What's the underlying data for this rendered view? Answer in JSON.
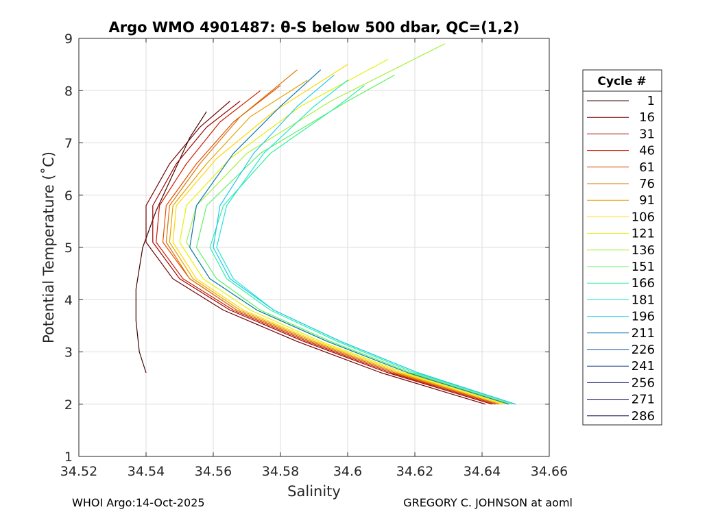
{
  "chart_data": {
    "type": "line",
    "title": "Argo WMO 4901487: θ-S below 500 dbar,  QC=(1,2)",
    "xlabel": "Salinity",
    "ylabel": "Potential Temperature (˚C)",
    "xlim": [
      34.52,
      34.66
    ],
    "ylim": [
      1,
      9
    ],
    "xticks": [
      34.52,
      34.54,
      34.56,
      34.58,
      34.6,
      34.62,
      34.64,
      34.66
    ],
    "xtick_labels": [
      "34.52",
      "34.54",
      "34.56",
      "34.58",
      "34.6",
      "34.62",
      "34.64",
      "34.66"
    ],
    "yticks": [
      1,
      2,
      3,
      4,
      5,
      6,
      7,
      8,
      9
    ],
    "ytick_labels": [
      "1",
      "2",
      "3",
      "4",
      "5",
      "6",
      "7",
      "8",
      "9"
    ],
    "grid": true,
    "legend": {
      "title": "Cycle #",
      "placement": "outside-right",
      "entries": [
        {
          "label": "1",
          "color": "#400000"
        },
        {
          "label": "16",
          "color": "#6e0000"
        },
        {
          "label": "31",
          "color": "#9c0000"
        },
        {
          "label": "46",
          "color": "#cc1a00"
        },
        {
          "label": "61",
          "color": "#e64a00"
        },
        {
          "label": "76",
          "color": "#d97300"
        },
        {
          "label": "91",
          "color": "#e6a000"
        },
        {
          "label": "106",
          "color": "#ffd700"
        },
        {
          "label": "121",
          "color": "#e6f000"
        },
        {
          "label": "136",
          "color": "#a6f03c"
        },
        {
          "label": "151",
          "color": "#5cf064"
        },
        {
          "label": "166",
          "color": "#2ef0a0"
        },
        {
          "label": "181",
          "color": "#1ee6d2"
        },
        {
          "label": "196",
          "color": "#1ec8f0"
        },
        {
          "label": "211",
          "color": "#0a78b4"
        },
        {
          "label": "226",
          "color": "#0a4696"
        },
        {
          "label": "241",
          "color": "#0a2d78"
        },
        {
          "label": "256",
          "color": "#000060"
        },
        {
          "label": "271",
          "color": "#000050"
        },
        {
          "label": "286",
          "color": "#000040"
        }
      ]
    },
    "series": [
      {
        "name": "1",
        "x": [
          34.54,
          34.538,
          34.537,
          34.537,
          34.539,
          34.543,
          34.548,
          34.553,
          34.558
        ],
        "y": [
          2.6,
          3.0,
          3.6,
          4.2,
          5.0,
          5.7,
          6.4,
          7.1,
          7.6
        ]
      },
      {
        "name": "16",
        "x": [
          34.641,
          34.61,
          34.585,
          34.563,
          34.548,
          34.54,
          34.54,
          34.547,
          34.556,
          34.565
        ],
        "y": [
          2.0,
          2.6,
          3.2,
          3.8,
          4.4,
          5.1,
          5.8,
          6.6,
          7.3,
          7.8
        ]
      },
      {
        "name": "31",
        "x": [
          34.643,
          34.612,
          34.587,
          34.565,
          34.55,
          34.542,
          34.542,
          34.549,
          34.558,
          34.568
        ],
        "y": [
          2.0,
          2.6,
          3.2,
          3.8,
          4.4,
          5.1,
          5.8,
          6.6,
          7.3,
          7.8
        ]
      },
      {
        "name": "46",
        "x": [
          34.644,
          34.613,
          34.588,
          34.566,
          34.551,
          34.543,
          34.544,
          34.552,
          34.562,
          34.574
        ],
        "y": [
          2.0,
          2.6,
          3.2,
          3.8,
          4.4,
          5.1,
          5.8,
          6.6,
          7.4,
          8.0
        ]
      },
      {
        "name": "61",
        "x": [
          34.645,
          34.614,
          34.589,
          34.567,
          34.553,
          34.545,
          34.546,
          34.555,
          34.566,
          34.58
        ],
        "y": [
          2.0,
          2.6,
          3.2,
          3.8,
          4.4,
          5.1,
          5.8,
          6.6,
          7.4,
          8.1
        ]
      },
      {
        "name": "76",
        "x": [
          34.645,
          34.614,
          34.589,
          34.567,
          34.553,
          34.546,
          34.547,
          34.556,
          34.568,
          34.585
        ],
        "y": [
          2.0,
          2.6,
          3.2,
          3.8,
          4.4,
          5.1,
          5.8,
          6.6,
          7.5,
          8.4
        ]
      },
      {
        "name": "91",
        "x": [
          34.646,
          34.615,
          34.59,
          34.568,
          34.554,
          34.547,
          34.548,
          34.558,
          34.571,
          34.588
        ],
        "y": [
          2.0,
          2.6,
          3.2,
          3.8,
          4.4,
          5.1,
          5.8,
          6.6,
          7.5,
          8.2
        ]
      },
      {
        "name": "106",
        "x": [
          34.646,
          34.616,
          34.591,
          34.569,
          34.555,
          34.548,
          34.549,
          34.561,
          34.578,
          34.6
        ],
        "y": [
          2.0,
          2.6,
          3.2,
          3.8,
          4.4,
          5.1,
          5.8,
          6.7,
          7.6,
          8.5
        ]
      },
      {
        "name": "121",
        "x": [
          34.647,
          34.617,
          34.592,
          34.571,
          34.557,
          34.55,
          34.552,
          34.565,
          34.586,
          34.612
        ],
        "y": [
          2.0,
          2.6,
          3.2,
          3.8,
          4.4,
          5.1,
          5.8,
          6.7,
          7.7,
          8.6
        ]
      },
      {
        "name": "136",
        "x": [
          34.648,
          34.618,
          34.594,
          34.573,
          34.559,
          34.552,
          34.555,
          34.57,
          34.595,
          34.629
        ],
        "y": [
          2.0,
          2.6,
          3.2,
          3.8,
          4.4,
          5.1,
          5.8,
          6.8,
          7.8,
          8.9
        ]
      },
      {
        "name": "151",
        "x": [
          34.649,
          34.619,
          34.595,
          34.574,
          34.561,
          34.555,
          34.558,
          34.574,
          34.6,
          34.614
        ],
        "y": [
          2.0,
          2.6,
          3.2,
          3.8,
          4.4,
          5.0,
          5.8,
          6.8,
          7.8,
          8.3
        ]
      },
      {
        "name": "166",
        "x": [
          34.65,
          34.62,
          34.597,
          34.577,
          34.564,
          34.559,
          34.563,
          34.577,
          34.597,
          34.605
        ],
        "y": [
          2.0,
          2.6,
          3.2,
          3.8,
          4.4,
          5.0,
          5.8,
          6.8,
          7.7,
          8.1
        ]
      },
      {
        "name": "181",
        "x": [
          34.65,
          34.621,
          34.598,
          34.578,
          34.566,
          34.561,
          34.564,
          34.575,
          34.59,
          34.6
        ],
        "y": [
          2.0,
          2.6,
          3.2,
          3.8,
          4.4,
          5.0,
          5.8,
          6.8,
          7.7,
          8.2
        ]
      },
      {
        "name": "196",
        "x": [
          34.65,
          34.621,
          34.598,
          34.578,
          34.565,
          34.56,
          34.562,
          34.572,
          34.585,
          34.596
        ],
        "y": [
          2.0,
          2.6,
          3.2,
          3.8,
          4.4,
          5.0,
          5.8,
          6.8,
          7.7,
          8.3
        ]
      },
      {
        "name": "211",
        "x": [
          34.648,
          34.618,
          34.594,
          34.573,
          34.559,
          34.553,
          34.555,
          34.566,
          34.58,
          34.592
        ],
        "y": [
          2.0,
          2.6,
          3.2,
          3.8,
          4.4,
          5.0,
          5.8,
          6.8,
          7.7,
          8.4
        ]
      }
    ]
  },
  "footer": {
    "left": "WHOI Argo:14-Oct-2025",
    "right": "GREGORY C. JOHNSON at aoml"
  }
}
